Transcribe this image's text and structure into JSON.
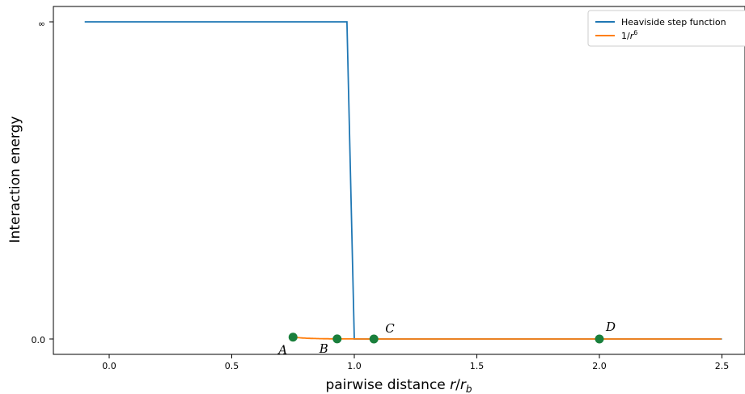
{
  "chart_data": {
    "type": "line",
    "xlabel": "pairwise distance r/r_b",
    "ylabel": "Interaction energy",
    "xlim": [
      -0.22,
      2.58
    ],
    "x_ticks": [
      "0.0",
      "0.5",
      "1.0",
      "1.5",
      "2.0",
      "2.5"
    ],
    "x_tick_values": [
      0.0,
      0.5,
      1.0,
      1.5,
      2.0,
      2.5
    ],
    "y_ticks": [
      "0.0",
      "∞"
    ],
    "grid": false,
    "legend_position": "top-right",
    "series": [
      {
        "name": "Heaviside step function",
        "color": "#1f77b4",
        "style": "solid",
        "x": [
          -0.1,
          0.97,
          1.0,
          2.5
        ],
        "y": [
          "∞",
          "∞",
          0.0,
          0.0
        ]
      },
      {
        "name": "1/r^6",
        "color": "#ff7f0e",
        "style": "solid",
        "function": "1/r^6",
        "x_range": [
          0.75,
          2.5
        ],
        "dashed_extension_x_range": [
          0.735,
          0.75
        ]
      }
    ],
    "points": [
      {
        "label": "A",
        "x": 0.75
      },
      {
        "label": "B",
        "x": 0.93
      },
      {
        "label": "C",
        "x": 1.08
      },
      {
        "label": "D",
        "x": 2.0
      }
    ],
    "point_color": "#1a7f3c"
  }
}
